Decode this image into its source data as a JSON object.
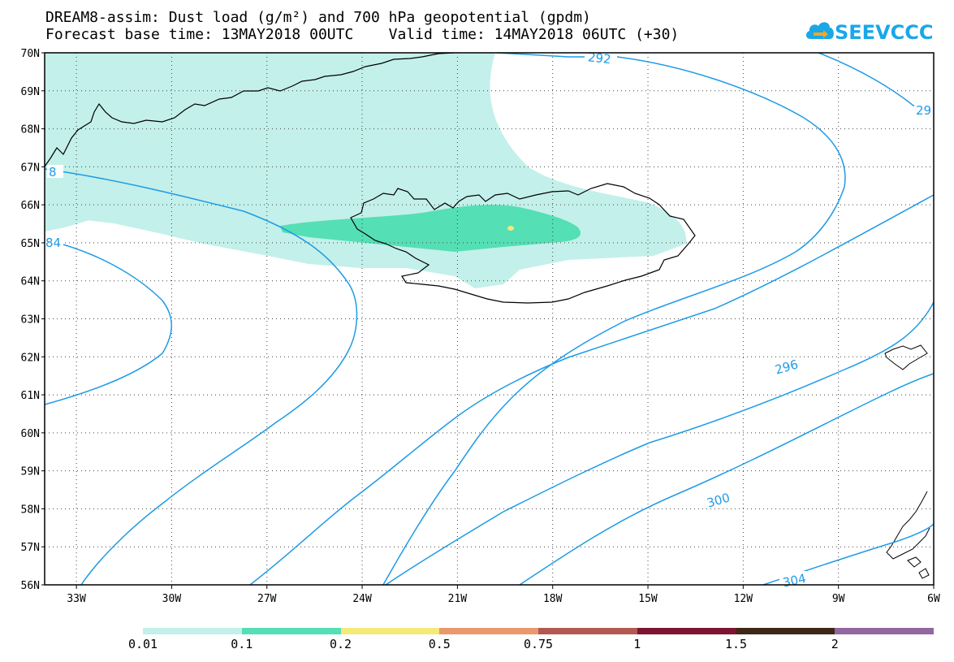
{
  "title": {
    "line1": "DREAM8-assim: Dust load (g/m²) and 700 hPa geopotential (gpdm)",
    "line2": "Forecast base time: 13MAY2018 00UTC    Valid time: 14MAY2018 06UTC (+30)"
  },
  "logo": {
    "text": "SEEVCCC",
    "icon": "cloud-arrow-icon",
    "color": "#1aa7e8"
  },
  "map": {
    "lat_range": [
      56,
      70
    ],
    "lon_range": [
      -34,
      -6
    ],
    "lat_ticks": [
      "70N",
      "69N",
      "68N",
      "67N",
      "66N",
      "65N",
      "64N",
      "63N",
      "62N",
      "61N",
      "60N",
      "59N",
      "58N",
      "57N",
      "56N"
    ],
    "lon_ticks": [
      "33W",
      "30W",
      "27W",
      "24W",
      "21W",
      "18W",
      "15W",
      "12W",
      "9W",
      "6W"
    ],
    "grid": true,
    "contour_color": "#1e9be6",
    "contour_labels": [
      "292",
      "29",
      "8",
      "84",
      "296",
      "300",
      "304"
    ]
  },
  "colorbar": {
    "labels": [
      "0.01",
      "0.1",
      "0.2",
      "0.5",
      "0.75",
      "1",
      "1.5",
      "2"
    ],
    "colors": [
      "#c3f0ea",
      "#55dfb4",
      "#f4ea7a",
      "#e89a6e",
      "#b25a52",
      "#7d1430",
      "#3d2818",
      "#93679f"
    ]
  }
}
